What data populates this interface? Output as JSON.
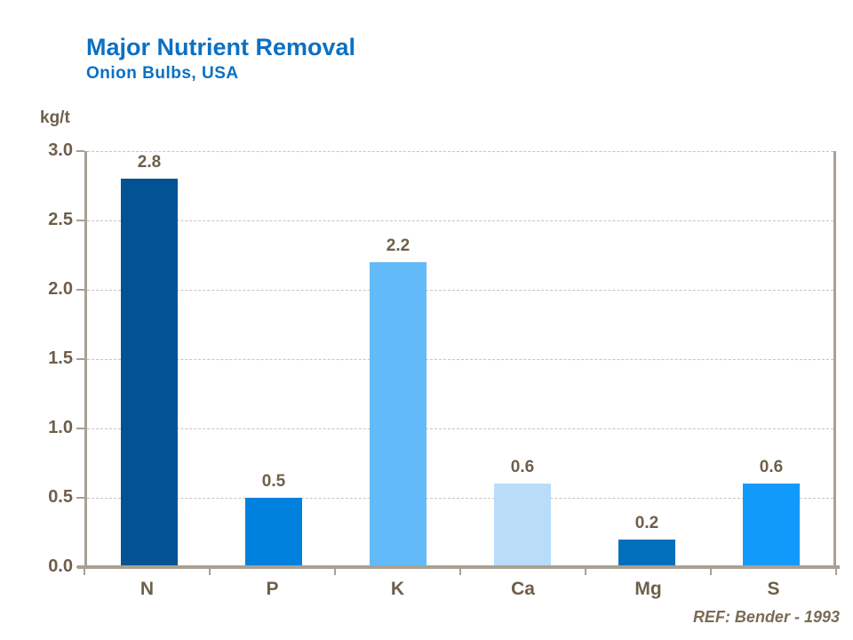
{
  "header": {
    "title": "Major Nutrient Removal",
    "subtitle": "Onion Bulbs, USA",
    "title_color": "#0b70c4"
  },
  "footer": {
    "reference": "REF: Bender - 1993"
  },
  "chart_data": {
    "type": "bar",
    "title": "Major Nutrient Removal",
    "subtitle": "Onion Bulbs, USA",
    "unit_label": "kg/t",
    "categories": [
      "N",
      "P",
      "K",
      "Ca",
      "Mg",
      "S"
    ],
    "values": [
      2.8,
      0.5,
      2.2,
      0.6,
      0.2,
      0.6
    ],
    "value_labels": [
      "2.8",
      "0.5",
      "2.2",
      "0.6",
      "0.2",
      "0.6"
    ],
    "bar_colors": [
      "#035394",
      "#0081dd",
      "#63baf8",
      "#b9dcf9",
      "#0070bd",
      "#129afa"
    ],
    "ylim": [
      0,
      3.0
    ],
    "ytick_step": 0.5,
    "yticks": [
      "0.0",
      "0.5",
      "1.0",
      "1.5",
      "2.0",
      "2.5",
      "3.0"
    ],
    "grid": "horizontal dashed gridlines at each 0.5, top gridline at 3.0 dashed",
    "legend": "none",
    "text_color": "#6e5f4b",
    "axis_color": "#a9a094",
    "gridline_color": "#cdc3b5",
    "annotation": "REF: Bender - 1993"
  }
}
